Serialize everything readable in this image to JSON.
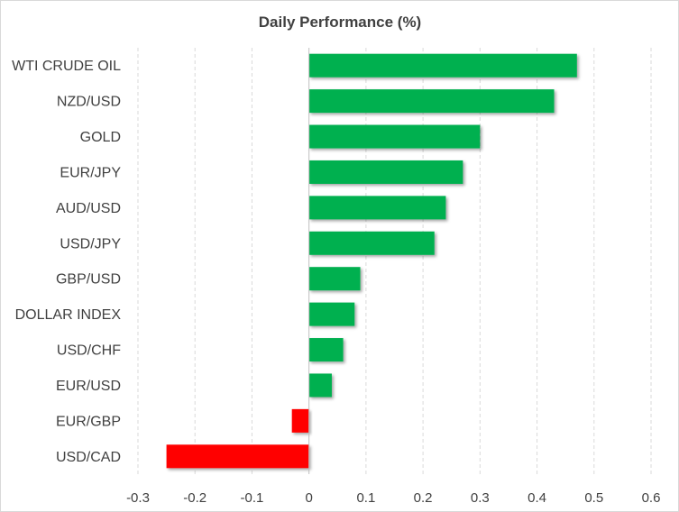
{
  "chart_data": {
    "type": "bar",
    "orientation": "horizontal",
    "title": "Daily Performance  (%)",
    "xlabel": "",
    "ylabel": "",
    "categories": [
      "WTI CRUDE OIL",
      "NZD/USD",
      "GOLD",
      "EUR/JPY",
      "AUD/USD",
      "USD/JPY",
      "GBP/USD",
      "DOLLAR INDEX",
      "USD/CHF",
      "EUR/USD",
      "EUR/GBP",
      "USD/CAD"
    ],
    "values": [
      0.47,
      0.43,
      0.3,
      0.27,
      0.24,
      0.22,
      0.09,
      0.08,
      0.06,
      0.04,
      -0.03,
      -0.25
    ],
    "xlim": [
      -0.3,
      0.6
    ],
    "ticks": [
      -0.3,
      -0.2,
      -0.1,
      0,
      0.1,
      0.2,
      0.3,
      0.4,
      0.5,
      0.6
    ],
    "tick_labels": [
      "-0.3",
      "-0.2",
      "-0.1",
      "0",
      "0.1",
      "0.2",
      "0.3",
      "0.4",
      "0.5",
      "0.6"
    ],
    "grid": "vertical dashed",
    "legend": "none",
    "colors": {
      "positive": "#00b050",
      "negative": "#ff0000",
      "grid": "#d9d9d9",
      "text": "#404040",
      "axis": "#bfbfbf"
    }
  }
}
